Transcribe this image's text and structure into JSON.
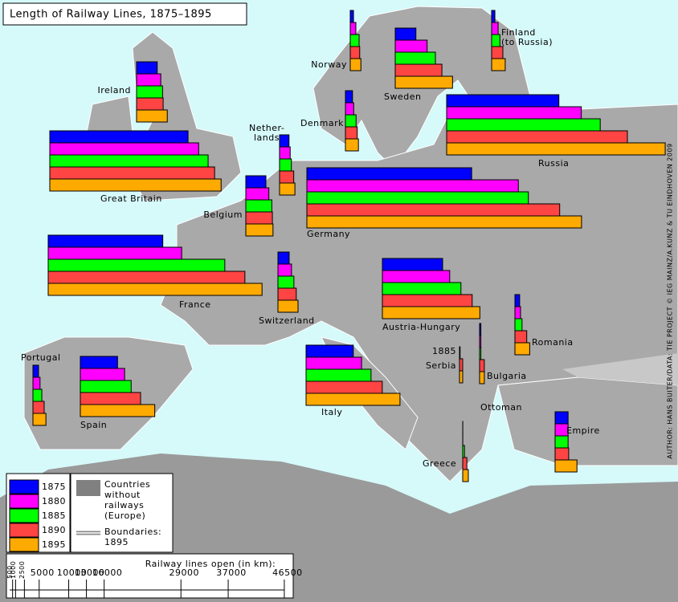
{
  "title": "Length of Railway Lines, 1875–1895",
  "countries": [
    {
      "name": [
        "Great Britain"
      ],
      "values": [
        23400,
        25200,
        26800,
        27900,
        29000
      ]
    },
    {
      "name": [
        "Ireland"
      ],
      "values": [
        3500,
        4100,
        4400,
        4500,
        5200
      ]
    },
    {
      "name": [
        "France"
      ],
      "values": [
        19400,
        22600,
        29900,
        33300,
        36200
      ]
    },
    {
      "name": [
        "Germany"
      ],
      "values": [
        27900,
        35800,
        37500,
        42800,
        46500
      ]
    },
    {
      "name": [
        "Russia"
      ],
      "values": [
        19000,
        22800,
        26000,
        30600,
        37000
      ]
    },
    {
      "name": [
        "Austria-Hungary"
      ],
      "values": [
        10200,
        11400,
        13300,
        15200,
        16500
      ]
    },
    {
      "name": [
        "Italy"
      ],
      "values": [
        8000,
        9400,
        11000,
        12900,
        15900
      ]
    },
    {
      "name": [
        "Spain"
      ],
      "values": [
        6300,
        7500,
        8600,
        10200,
        12600
      ]
    },
    {
      "name": [
        "Sweden"
      ],
      "values": [
        3500,
        5400,
        6800,
        7900,
        9700
      ]
    },
    {
      "name": [
        "Belgium"
      ],
      "values": [
        3400,
        3900,
        4400,
        4500,
        4600
      ]
    },
    {
      "name": [
        "Nether-",
        "lands"
      ],
      "values": [
        1600,
        1800,
        2000,
        2400,
        2600
      ]
    },
    {
      "name": [
        "Switzerland"
      ],
      "values": [
        1900,
        2300,
        2700,
        3100,
        3400
      ]
    },
    {
      "name": [
        "Denmark"
      ],
      "values": [
        1200,
        1400,
        1800,
        2000,
        2200
      ]
    },
    {
      "name": [
        "Norway"
      ],
      "values": [
        550,
        950,
        1500,
        1600,
        1800
      ]
    },
    {
      "name": [
        "Finland",
        "(to Russia)"
      ],
      "values": [
        550,
        1100,
        1400,
        1900,
        2300
      ]
    },
    {
      "name": [
        "Portugal"
      ],
      "values": [
        950,
        1200,
        1500,
        1900,
        2200
      ]
    },
    {
      "name": [
        "Romania"
      ],
      "values": [
        800,
        950,
        1200,
        2000,
        2500
      ]
    },
    {
      "name": [
        "1885",
        "Serbia"
      ],
      "values": [
        null,
        null,
        100,
        540,
        540
      ]
    },
    {
      "name": [
        "Bulgaria"
      ],
      "values": [
        220,
        220,
        220,
        800,
        800
      ]
    },
    {
      "name": [
        "Ottoman",
        "Empire"
      ],
      "values": [
        2200,
        2200,
        2200,
        2300,
        3700
      ]
    },
    {
      "name": [
        "Greece"
      ],
      "values": [
        12,
        12,
        300,
        700,
        950
      ]
    }
  ],
  "legend": {
    "items": [
      {
        "label": "1875",
        "color": "#0000ff"
      },
      {
        "label": "1880",
        "color": "#ff00ff"
      },
      {
        "label": "1885",
        "color": "#00ff00"
      },
      {
        "label": "1890",
        "color": "#ff4444"
      },
      {
        "label": "1895",
        "color": "#ffaa00"
      }
    ],
    "no_railways": [
      "Countries",
      "without",
      "railways",
      "(Europe)"
    ],
    "boundaries": [
      "Boundaries:",
      "1895"
    ]
  },
  "scale": {
    "title": "Railway lines open (in km):",
    "ticks": [
      500,
      1000,
      2500,
      5000,
      10000,
      13000,
      16000,
      29000,
      37000,
      46500
    ]
  },
  "credit": "AUTHOR: HANS BUITER/DATA: TIE PROJECT © IEG MAINZ/A.KUNZ & TU EINDHOVEN 2009"
}
